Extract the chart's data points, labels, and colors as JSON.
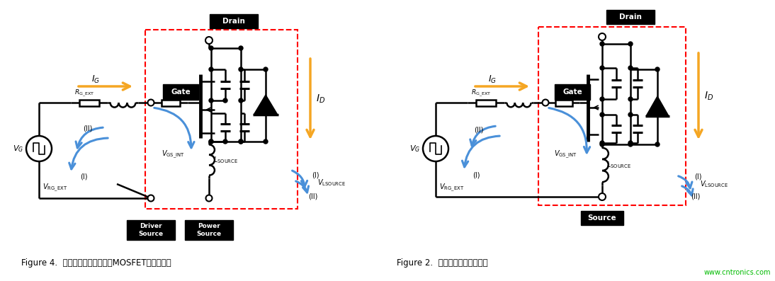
{
  "fig_width": 10.94,
  "fig_height": 3.97,
  "dpi": 100,
  "bg_color": "#ffffff",
  "caption_left": "Figure 4.  具有驱动器源极引脚的MOSFET的驱动电路",
  "caption_right": "Figure 2.  开关工作过程中的电压",
  "watermark": "www.cntronics.com",
  "watermark_color": "#00bb00",
  "orange": "#F5A623",
  "blue": "#4A90D9",
  "red": "#FF0000",
  "black": "#000000",
  "white": "#ffffff",
  "gray": "#aaaaaa"
}
